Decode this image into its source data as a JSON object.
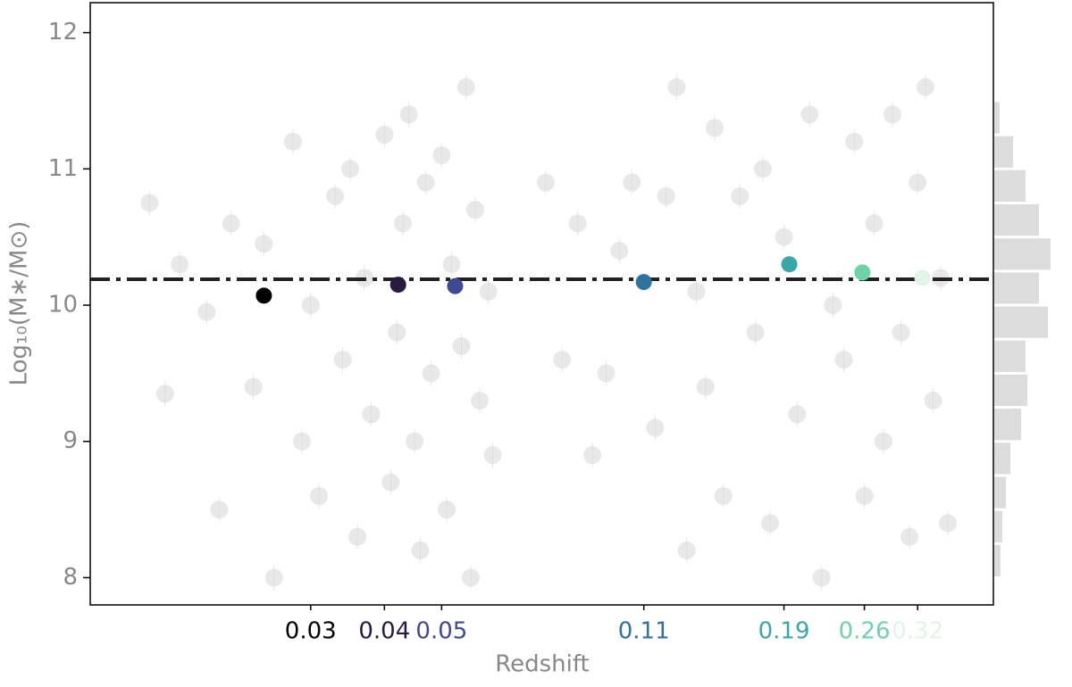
{
  "chart_data": {
    "type": "scatter",
    "x_label": "Redshift",
    "y_label": "Log₁₀(M∗/M⊙)",
    "xscale": "log",
    "xlim": [
      0.0127,
      0.43
    ],
    "ylim": [
      7.8,
      12.22
    ],
    "yticks": [
      8,
      9,
      10,
      11,
      12
    ],
    "xticks": [
      0.03,
      0.04,
      0.05,
      0.11,
      0.19,
      0.26,
      0.32
    ],
    "hline": 10.19,
    "series": [
      {
        "color": "#d9d9d9",
        "x": [
          0.016,
          0.018,
          0.017,
          0.02,
          0.021,
          0.022,
          0.024,
          0.025,
          0.026,
          0.028,
          0.029,
          0.03,
          0.031,
          0.033,
          0.034,
          0.035,
          0.036,
          0.037,
          0.038,
          0.04,
          0.041,
          0.042,
          0.043,
          0.044,
          0.045,
          0.046,
          0.047,
          0.048,
          0.05,
          0.051,
          0.052,
          0.054,
          0.055,
          0.056,
          0.057,
          0.058,
          0.06,
          0.061,
          0.075,
          0.08,
          0.085,
          0.09,
          0.095,
          0.1,
          0.105,
          0.115,
          0.12,
          0.125,
          0.13,
          0.135,
          0.14,
          0.145,
          0.15,
          0.16,
          0.17,
          0.175,
          0.18,
          0.19,
          0.2,
          0.21,
          0.22,
          0.23,
          0.24,
          0.25,
          0.26,
          0.27,
          0.28,
          0.29,
          0.3,
          0.31,
          0.32,
          0.33,
          0.34,
          0.35,
          0.36
        ],
        "y": [
          10.75,
          10.3,
          9.35,
          9.95,
          8.5,
          10.6,
          9.4,
          10.45,
          8.0,
          11.2,
          9.0,
          10.0,
          8.6,
          10.8,
          9.6,
          11.0,
          8.3,
          10.2,
          9.2,
          11.25,
          8.7,
          9.8,
          10.6,
          11.4,
          9.0,
          8.2,
          10.9,
          9.5,
          11.1,
          8.5,
          10.3,
          9.7,
          11.6,
          8.0,
          10.7,
          9.3,
          10.1,
          8.9,
          10.9,
          9.6,
          10.6,
          8.9,
          9.5,
          10.4,
          10.9,
          9.1,
          10.8,
          11.6,
          8.2,
          10.1,
          9.4,
          11.3,
          8.6,
          10.8,
          9.8,
          11.0,
          8.4,
          10.5,
          9.2,
          11.4,
          8.0,
          10.0,
          9.6,
          11.2,
          8.6,
          10.6,
          9.0,
          11.4,
          9.8,
          8.3,
          10.9,
          11.6,
          9.3,
          10.2,
          8.4
        ]
      },
      {
        "colors": [
          "#000000",
          "#2b1a3f",
          "#3e4a92",
          "#2f72a0",
          "#36a8a5",
          "#6dd3a6",
          "#e0f5e7"
        ],
        "x": [
          0.025,
          0.0422,
          0.0527,
          0.11,
          0.194,
          0.258,
          0.326
        ],
        "y": [
          10.07,
          10.15,
          10.14,
          10.17,
          10.3,
          10.24,
          10.2
        ]
      }
    ],
    "histogram": {
      "color": "#dcdcdc",
      "bins": [
        8.0,
        8.25,
        8.5,
        8.75,
        9.0,
        9.25,
        9.5,
        9.75,
        10.0,
        10.25,
        10.5,
        10.75,
        11.0,
        11.25,
        11.5
      ],
      "counts": [
        7,
        9,
        13,
        18,
        30,
        37,
        35,
        60,
        50,
        63,
        50,
        35,
        21,
        6
      ]
    }
  }
}
